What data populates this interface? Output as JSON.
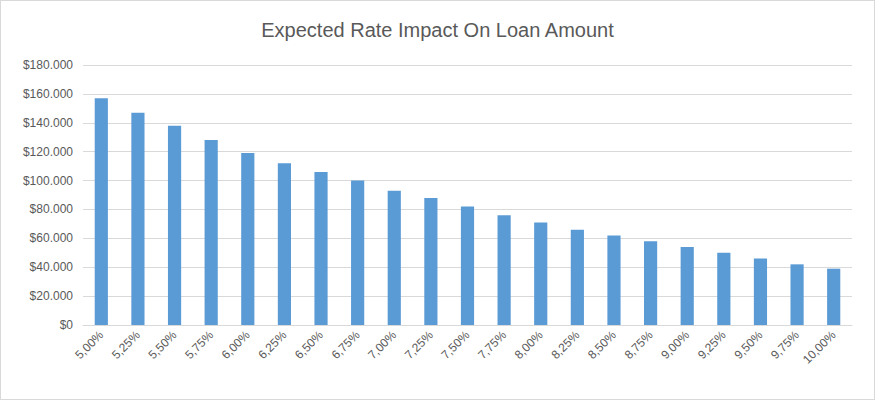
{
  "chart_data": {
    "type": "bar",
    "title": "Expected Rate Impact On Loan Amount",
    "categories": [
      "5,00%",
      "5,25%",
      "5,50%",
      "5,75%",
      "6,00%",
      "6,25%",
      "6,50%",
      "6,75%",
      "7,00%",
      "7,25%",
      "7,50%",
      "7,75%",
      "8,00%",
      "8,25%",
      "8,50%",
      "8,75%",
      "9,00%",
      "9,25%",
      "9,50%",
      "9,75%",
      "10,00%"
    ],
    "values": [
      157000,
      147000,
      138000,
      128000,
      119000,
      112000,
      106000,
      100000,
      93000,
      88000,
      82000,
      76000,
      71000,
      66000,
      62000,
      58000,
      54000,
      50000,
      46000,
      42000,
      39000
    ],
    "color": "#5b9bd5",
    "ylim": [
      0,
      180000
    ],
    "yticks": [
      {
        "value": 0,
        "label": "$0"
      },
      {
        "value": 20000,
        "label": "$20.000"
      },
      {
        "value": 40000,
        "label": "$40.000"
      },
      {
        "value": 60000,
        "label": "$60.000"
      },
      {
        "value": 80000,
        "label": "$80.000"
      },
      {
        "value": 100000,
        "label": "$100.000"
      },
      {
        "value": 120000,
        "label": "$120.000"
      },
      {
        "value": 140000,
        "label": "$140.000"
      },
      {
        "value": 160000,
        "label": "$160.000"
      },
      {
        "value": 180000,
        "label": "$180.000"
      }
    ],
    "grid": true
  }
}
